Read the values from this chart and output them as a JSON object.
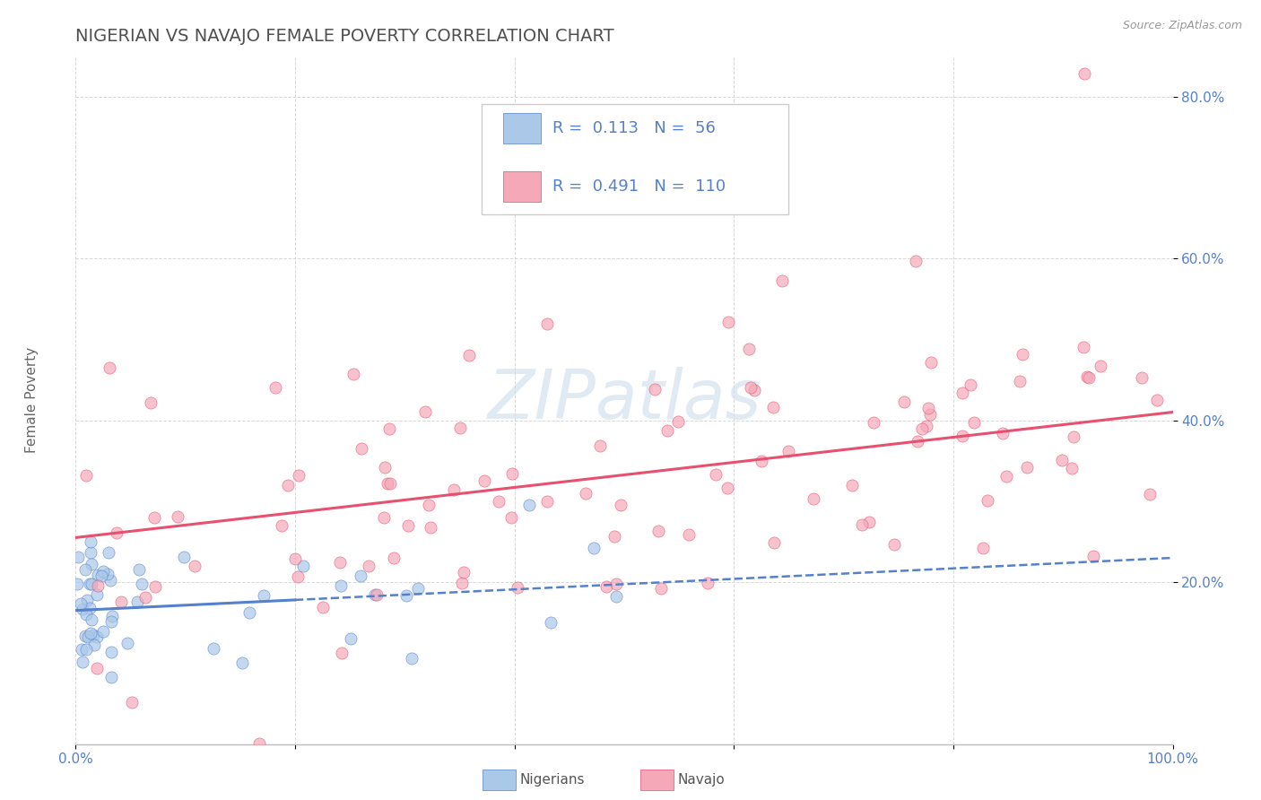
{
  "title": "NIGERIAN VS NAVAJO FEMALE POVERTY CORRELATION CHART",
  "source": "Source: ZipAtlas.com",
  "ylabel": "Female Poverty",
  "xlim": [
    0.0,
    1.0
  ],
  "ylim": [
    0.0,
    0.85
  ],
  "xticks": [
    0.0,
    0.2,
    0.4,
    0.6,
    0.8,
    1.0
  ],
  "xticklabels": [
    "0.0%",
    "",
    "",
    "",
    "",
    "100.0%"
  ],
  "ytick_vals": [
    0.2,
    0.4,
    0.6,
    0.8
  ],
  "ytick_labels": [
    "20.0%",
    "40.0%",
    "60.0%",
    "80.0%"
  ],
  "nigerian_R": 0.113,
  "nigerian_N": 56,
  "navajo_R": 0.491,
  "navajo_N": 110,
  "nigerian_color": "#aac8e8",
  "navajo_color": "#f4a8b8",
  "nigerian_line_color": "#5580cc",
  "navajo_line_color": "#e85070",
  "background_color": "#ffffff",
  "grid_color": "#d8d8d8",
  "title_color": "#505050",
  "source_color": "#999999",
  "watermark": "ZIPatlas",
  "watermark_color": "#ccdcec",
  "tick_color": "#5580cc",
  "nigerian_intercept": 0.165,
  "nigerian_slope": 0.065,
  "navajo_intercept": 0.255,
  "navajo_slope": 0.155
}
